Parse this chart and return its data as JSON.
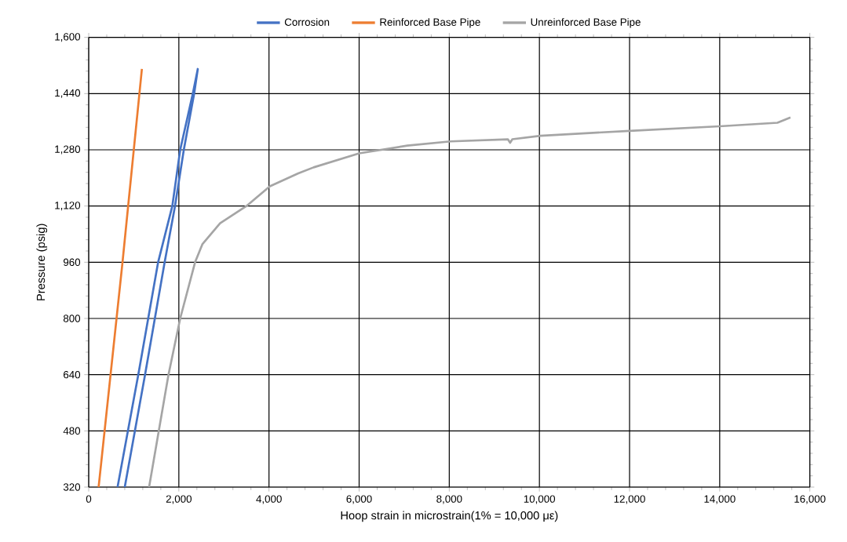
{
  "chart_data": {
    "type": "line",
    "xlabel": "Hoop strain in microstrain(1% = 10,000 με)",
    "ylabel": "Pressure (psig)",
    "xlim": [
      0,
      16000
    ],
    "ylim": [
      320,
      1600
    ],
    "xticks": [
      0,
      {
        "value": 2000,
        "label": "2,000"
      },
      {
        "value": 4000,
        "label": "4,000"
      },
      {
        "value": 6000,
        "label": "6,000"
      },
      {
        "value": 8000,
        "label": "8,000"
      },
      {
        "value": 10000,
        "label": "10,000"
      },
      {
        "value": 12000,
        "label": "12,000"
      },
      {
        "value": 14000,
        "label": "14,000"
      },
      {
        "value": 16000,
        "label": "16,000"
      }
    ],
    "yticks": [
      320,
      480,
      640,
      800,
      960,
      {
        "value": 1120,
        "label": "1,120"
      },
      {
        "value": 1280,
        "label": "1,280"
      },
      {
        "value": 1440,
        "label": "1,440"
      },
      {
        "value": 1600,
        "label": "1,600"
      }
    ],
    "grid": true,
    "legend": "top",
    "marker": "none",
    "line_style": "solid",
    "series": [
      {
        "name": "Corrosion",
        "color": "#4472c4",
        "x": [
          640,
          1100,
          1540,
          1855,
          2030,
          2310,
          2420,
          2340,
          2110,
          1915,
          1685,
          1250,
          800
        ],
        "values": [
          320,
          640,
          960,
          1120,
          1280,
          1440,
          1510,
          1440,
          1280,
          1120,
          960,
          640,
          320
        ]
      },
      {
        "name": "Reinforced Base Pipe",
        "color": "#ed7d31",
        "x": [
          220,
          750,
          1180
        ],
        "values": [
          320,
          960,
          1510
        ]
      },
      {
        "name": "Unreinforced Base Pipe",
        "color": "#a5a5a5",
        "x": [
          1340,
          1770,
          2030,
          2360,
          2525,
          2915,
          3500,
          4020,
          4650,
          4990,
          6000,
          7070,
          8030,
          9300,
          9350,
          9400,
          10020,
          12000,
          14000,
          15280,
          15570
        ],
        "values": [
          320,
          640,
          800,
          960,
          1012,
          1071,
          1120,
          1176,
          1213,
          1230,
          1270,
          1292,
          1304,
          1310,
          1300,
          1310,
          1320,
          1334,
          1347,
          1357,
          1372
        ]
      }
    ]
  }
}
